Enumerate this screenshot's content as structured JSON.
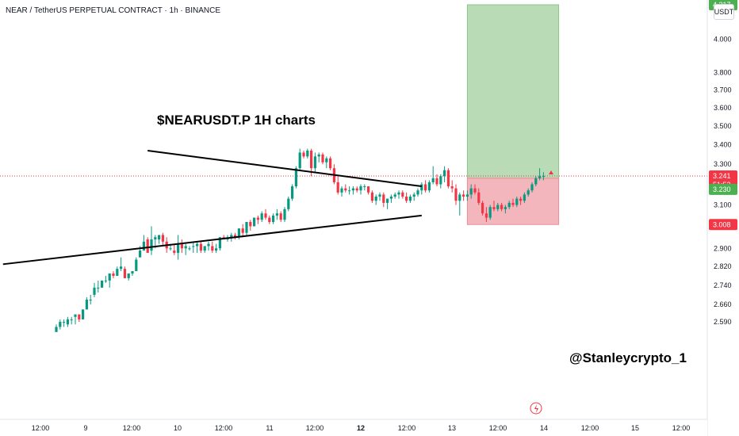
{
  "header": {
    "title": "NEAR / TetherUS PERPETUAL CONTRACT · 1h · BINANCE",
    "currency": "USDT"
  },
  "annotations": {
    "chart_title": "$NEARUSDT.P 1H charts",
    "author_handle": "@Stanleycrypto_1"
  },
  "colors": {
    "up": "#089981",
    "down": "#f23645",
    "profit_zone": "#b9dcb6",
    "loss_zone": "#f3b6bc",
    "trendline": "#000000",
    "axis_text": "#131722",
    "price_line": "#f23645"
  },
  "chart_data": {
    "type": "candlestick",
    "symbol": "NEARUSDT.P",
    "timeframe": "1h",
    "x_ticks": [
      "12:00",
      "9",
      "12:00",
      "10",
      "12:00",
      "11",
      "12:00",
      "12",
      "12:00",
      "13",
      "12:00",
      "14",
      "12:00",
      "15",
      "12:00"
    ],
    "y_ticks": [
      2.59,
      2.66,
      2.74,
      2.82,
      2.9,
      3.1,
      3.3,
      3.4,
      3.5,
      3.6,
      3.7,
      3.8,
      4.0
    ],
    "y_tick_labels": [
      "2.590",
      "2.660",
      "2.740",
      "2.820",
      "2.900",
      "3.100",
      "3.300",
      "3.400",
      "3.500",
      "3.600",
      "3.700",
      "3.800",
      "4.000"
    ],
    "price_labels": [
      {
        "label": "4.217",
        "value": 4.217,
        "color": "#4caf50"
      },
      {
        "label": "3.241",
        "sub": "51:52",
        "value": 3.241,
        "color": "#f23645"
      },
      {
        "label": "3.230",
        "value": 3.23,
        "color": "#4caf50"
      },
      {
        "label": "3.008",
        "value": 3.008,
        "color": "#f23645"
      }
    ],
    "position": {
      "entry": 3.23,
      "target": 4.217,
      "stop": 3.008,
      "start_hour": 108,
      "end_hour": 132
    },
    "trendlines": [
      {
        "name": "upper",
        "start": [
          24,
          3.37
        ],
        "end": [
          96,
          3.19
        ]
      },
      {
        "name": "lower",
        "start": [
          -14,
          2.83
        ],
        "end": [
          96,
          3.05
        ]
      }
    ],
    "ohlc": [
      [
        2.55,
        2.58,
        2.55,
        2.57
      ],
      [
        2.57,
        2.6,
        2.56,
        2.59
      ],
      [
        2.59,
        2.6,
        2.57,
        2.59
      ],
      [
        2.58,
        2.61,
        2.57,
        2.6
      ],
      [
        2.6,
        2.61,
        2.58,
        2.6
      ],
      [
        2.61,
        2.62,
        2.58,
        2.62
      ],
      [
        2.62,
        2.62,
        2.59,
        2.6
      ],
      [
        2.6,
        2.64,
        2.6,
        2.64
      ],
      [
        2.64,
        2.69,
        2.64,
        2.68
      ],
      [
        2.68,
        2.7,
        2.66,
        2.68
      ],
      [
        2.7,
        2.75,
        2.69,
        2.73
      ],
      [
        2.73,
        2.76,
        2.71,
        2.73
      ],
      [
        2.73,
        2.76,
        2.73,
        2.76
      ],
      [
        2.76,
        2.78,
        2.75,
        2.76
      ],
      [
        2.76,
        2.79,
        2.73,
        2.79
      ],
      [
        2.79,
        2.8,
        2.77,
        2.78
      ],
      [
        2.78,
        2.82,
        2.78,
        2.81
      ],
      [
        2.81,
        2.86,
        2.8,
        2.82
      ],
      [
        2.81,
        2.82,
        2.77,
        2.77
      ],
      [
        2.77,
        2.79,
        2.76,
        2.79
      ],
      [
        2.79,
        2.8,
        2.78,
        2.8
      ],
      [
        2.8,
        2.86,
        2.8,
        2.85
      ],
      [
        2.86,
        2.91,
        2.86,
        2.89
      ],
      [
        2.89,
        2.96,
        2.89,
        2.93
      ],
      [
        2.94,
        2.95,
        2.88,
        2.88
      ],
      [
        2.89,
        3.0,
        2.87,
        2.94
      ],
      [
        2.94,
        2.96,
        2.9,
        2.95
      ],
      [
        2.94,
        2.96,
        2.92,
        2.96
      ],
      [
        2.96,
        2.97,
        2.91,
        2.93
      ],
      [
        2.93,
        2.95,
        2.88,
        2.9
      ],
      [
        2.9,
        2.92,
        2.89,
        2.9
      ],
      [
        2.89,
        2.92,
        2.87,
        2.88
      ],
      [
        2.88,
        2.96,
        2.85,
        2.92
      ],
      [
        2.92,
        2.94,
        2.88,
        2.9
      ],
      [
        2.9,
        2.92,
        2.87,
        2.91
      ],
      [
        2.9,
        2.91,
        2.89,
        2.9
      ],
      [
        2.91,
        2.93,
        2.88,
        2.91
      ],
      [
        2.91,
        2.93,
        2.88,
        2.92
      ],
      [
        2.92,
        2.93,
        2.88,
        2.89
      ],
      [
        2.89,
        2.91,
        2.88,
        2.91
      ],
      [
        2.91,
        2.93,
        2.89,
        2.92
      ],
      [
        2.91,
        2.93,
        2.88,
        2.89
      ],
      [
        2.89,
        2.92,
        2.88,
        2.9
      ],
      [
        2.9,
        2.95,
        2.89,
        2.95
      ],
      [
        2.95,
        2.96,
        2.94,
        2.94
      ],
      [
        2.94,
        2.96,
        2.93,
        2.95
      ],
      [
        2.95,
        2.97,
        2.93,
        2.96
      ],
      [
        2.96,
        2.97,
        2.94,
        2.95
      ],
      [
        2.95,
        2.99,
        2.94,
        2.99
      ],
      [
        2.99,
        3.01,
        2.95,
        2.97
      ],
      [
        2.97,
        3.02,
        2.96,
        3.02
      ],
      [
        3.02,
        3.03,
        2.98,
        3.0
      ],
      [
        3.0,
        3.04,
        3.0,
        3.04
      ],
      [
        3.04,
        3.05,
        3.01,
        3.03
      ],
      [
        3.03,
        3.07,
        3.02,
        3.06
      ],
      [
        3.06,
        3.08,
        3.03,
        3.04
      ],
      [
        3.04,
        3.05,
        3.01,
        3.02
      ],
      [
        3.02,
        3.06,
        3.01,
        3.05
      ],
      [
        3.05,
        3.08,
        3.03,
        3.06
      ],
      [
        3.06,
        3.07,
        3.02,
        3.03
      ],
      [
        3.03,
        3.09,
        3.02,
        3.08
      ],
      [
        3.08,
        3.14,
        3.07,
        3.13
      ],
      [
        3.13,
        3.2,
        3.12,
        3.19
      ],
      [
        3.19,
        3.29,
        3.18,
        3.28
      ],
      [
        3.28,
        3.38,
        3.27,
        3.36
      ],
      [
        3.36,
        3.37,
        3.33,
        3.34
      ],
      [
        3.34,
        3.38,
        3.33,
        3.37
      ],
      [
        3.37,
        3.38,
        3.24,
        3.28
      ],
      [
        3.28,
        3.36,
        3.26,
        3.34
      ],
      [
        3.34,
        3.36,
        3.31,
        3.35
      ],
      [
        3.35,
        3.36,
        3.3,
        3.31
      ],
      [
        3.31,
        3.34,
        3.28,
        3.33
      ],
      [
        3.33,
        3.34,
        3.27,
        3.28
      ],
      [
        3.28,
        3.3,
        3.2,
        3.21
      ],
      [
        3.21,
        3.24,
        3.15,
        3.16
      ],
      [
        3.16,
        3.19,
        3.14,
        3.18
      ],
      [
        3.18,
        3.2,
        3.16,
        3.17
      ],
      [
        3.17,
        3.19,
        3.15,
        3.17
      ],
      [
        3.17,
        3.19,
        3.15,
        3.18
      ],
      [
        3.18,
        3.19,
        3.16,
        3.17
      ],
      [
        3.17,
        3.2,
        3.15,
        3.19
      ],
      [
        3.19,
        3.2,
        3.17,
        3.19
      ],
      [
        3.19,
        3.19,
        3.15,
        3.16
      ],
      [
        3.16,
        3.17,
        3.11,
        3.12
      ],
      [
        3.12,
        3.15,
        3.1,
        3.14
      ],
      [
        3.14,
        3.16,
        3.12,
        3.15
      ],
      [
        3.15,
        3.16,
        3.09,
        3.11
      ],
      [
        3.11,
        3.13,
        3.08,
        3.13
      ],
      [
        3.13,
        3.15,
        3.11,
        3.14
      ],
      [
        3.14,
        3.16,
        3.13,
        3.15
      ],
      [
        3.15,
        3.17,
        3.13,
        3.16
      ],
      [
        3.16,
        3.17,
        3.13,
        3.14
      ],
      [
        3.14,
        3.16,
        3.11,
        3.12
      ],
      [
        3.12,
        3.15,
        3.11,
        3.14
      ],
      [
        3.14,
        3.16,
        3.12,
        3.15
      ],
      [
        3.15,
        3.18,
        3.14,
        3.17
      ],
      [
        3.17,
        3.21,
        3.15,
        3.2
      ],
      [
        3.2,
        3.22,
        3.16,
        3.17
      ],
      [
        3.17,
        3.22,
        3.16,
        3.21
      ],
      [
        3.21,
        3.29,
        3.2,
        3.23
      ],
      [
        3.23,
        3.25,
        3.19,
        3.2
      ],
      [
        3.2,
        3.25,
        3.18,
        3.24
      ],
      [
        3.24,
        3.29,
        3.21,
        3.27
      ],
      [
        3.27,
        3.28,
        3.18,
        3.19
      ],
      [
        3.19,
        3.22,
        3.16,
        3.18
      ],
      [
        3.18,
        3.2,
        3.1,
        3.12
      ],
      [
        3.12,
        3.16,
        3.05,
        3.15
      ],
      [
        3.15,
        3.17,
        3.12,
        3.14
      ],
      [
        3.14,
        3.17,
        3.12,
        3.15
      ],
      [
        3.15,
        3.2,
        3.13,
        3.18
      ],
      [
        3.18,
        3.2,
        3.15,
        3.16
      ],
      [
        3.16,
        3.18,
        3.1,
        3.11
      ],
      [
        3.11,
        3.12,
        3.05,
        3.06
      ],
      [
        3.06,
        3.09,
        3.02,
        3.04
      ],
      [
        3.04,
        3.1,
        3.03,
        3.09
      ],
      [
        3.09,
        3.12,
        3.07,
        3.08
      ],
      [
        3.08,
        3.11,
        3.07,
        3.1
      ],
      [
        3.1,
        3.11,
        3.07,
        3.08
      ],
      [
        3.08,
        3.1,
        3.06,
        3.09
      ],
      [
        3.09,
        3.12,
        3.08,
        3.11
      ],
      [
        3.11,
        3.13,
        3.09,
        3.1
      ],
      [
        3.1,
        3.14,
        3.09,
        3.13
      ],
      [
        3.13,
        3.14,
        3.1,
        3.12
      ],
      [
        3.12,
        3.16,
        3.11,
        3.15
      ],
      [
        3.15,
        3.18,
        3.14,
        3.17
      ],
      [
        3.17,
        3.21,
        3.16,
        3.2
      ],
      [
        3.2,
        3.24,
        3.19,
        3.23
      ],
      [
        3.23,
        3.28,
        3.22,
        3.24
      ],
      [
        3.24,
        3.26,
        3.22,
        3.241
      ]
    ]
  }
}
